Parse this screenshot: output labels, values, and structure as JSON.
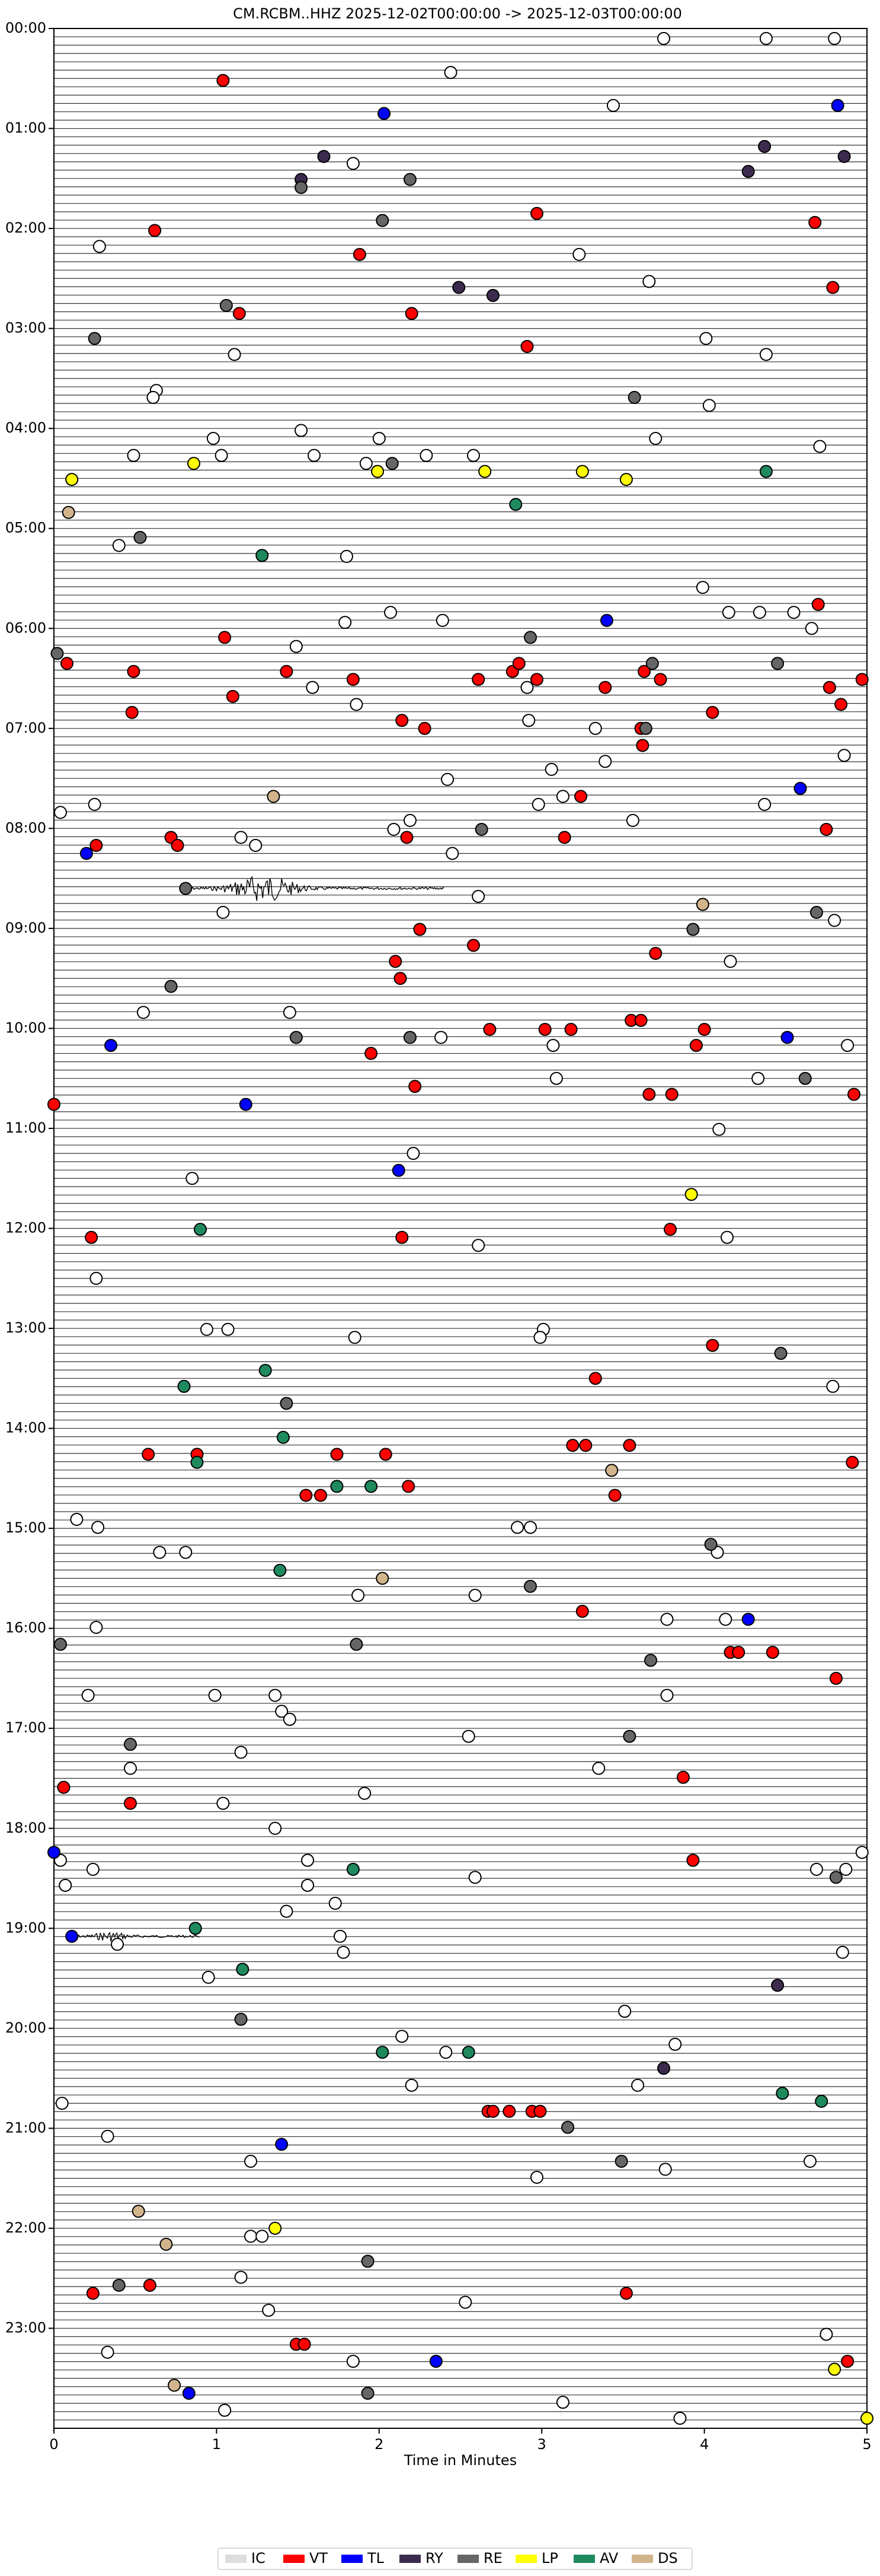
{
  "chart_data": {
    "type": "scatter",
    "title": "CM.RCBM..HHZ  2025-12-02T00:00:00 -> 2025-12-03T00:00:00",
    "x_label": "Time in Minutes",
    "xlim": [
      0,
      5
    ],
    "xticks": [
      0,
      1,
      2,
      3,
      4,
      5
    ],
    "ylim": [
      0,
      24
    ],
    "y_inverted": true,
    "yticks": [
      {
        "value": 0,
        "label": "00:00"
      },
      {
        "value": 1,
        "label": "01:00"
      },
      {
        "value": 2,
        "label": "02:00"
      },
      {
        "value": 3,
        "label": "03:00"
      },
      {
        "value": 4,
        "label": "04:00"
      },
      {
        "value": 5,
        "label": "05:00"
      },
      {
        "value": 6,
        "label": "06:00"
      },
      {
        "value": 7,
        "label": "07:00"
      },
      {
        "value": 8,
        "label": "08:00"
      },
      {
        "value": 9,
        "label": "09:00"
      },
      {
        "value": 10,
        "label": "10:00"
      },
      {
        "value": 11,
        "label": "11:00"
      },
      {
        "value": 12,
        "label": "12:00"
      },
      {
        "value": 13,
        "label": "13:00"
      },
      {
        "value": 14,
        "label": "14:00"
      },
      {
        "value": 15,
        "label": "15:00"
      },
      {
        "value": 16,
        "label": "16:00"
      },
      {
        "value": 17,
        "label": "17:00"
      },
      {
        "value": 18,
        "label": "18:00"
      },
      {
        "value": 19,
        "label": "19:00"
      },
      {
        "value": 20,
        "label": "20:00"
      },
      {
        "value": 21,
        "label": "21:00"
      },
      {
        "value": 22,
        "label": "22:00"
      },
      {
        "value": 23,
        "label": "23:00"
      }
    ],
    "legend": "bottom",
    "series": [
      {
        "name": "IC",
        "color": "#ffffff",
        "x": [
          3.75,
          4.38,
          4.8,
          2.44,
          3.44,
          1.84,
          0.28,
          3.23,
          3.66,
          4.01,
          4.38,
          1.11,
          0.63,
          0.61,
          4.03,
          0.98,
          3.7,
          1.52,
          4.71,
          0.49,
          1.03,
          1.6,
          2.0,
          1.92,
          2.29,
          2.58,
          0.4,
          1.8,
          3.99,
          4.15,
          4.34,
          4.55,
          2.07,
          4.66,
          2.39,
          1.79,
          1.49,
          1.59,
          1.86,
          2.91,
          2.92,
          3.33,
          4.86,
          2.42,
          3.06,
          3.39,
          3.13,
          2.98,
          4.37,
          0.25,
          0.04,
          3.56,
          2.19,
          2.09,
          1.15,
          1.24,
          2.45,
          2.61,
          1.04,
          4.16,
          0.55,
          1.45,
          4.8,
          3.07,
          2.38,
          4.88,
          3.09,
          4.33,
          4.09,
          2.21,
          0.85,
          4.14,
          2.61,
          0.26,
          0.94,
          1.07,
          1.85,
          3.01,
          2.99,
          4.79,
          0.14,
          0.27,
          2.85,
          2.93,
          0.65,
          0.81,
          4.08,
          1.87,
          2.59,
          0.26,
          3.77,
          4.13,
          0.21,
          0.99,
          1.36,
          1.4,
          1.45,
          3.77,
          2.55,
          1.15,
          0.47,
          1.04,
          3.35,
          1.36,
          1.91,
          4.97,
          0.04,
          0.24,
          1.56,
          4.69,
          4.87,
          1.56,
          0.07,
          2.59,
          1.43,
          1.73,
          1.76,
          1.78,
          0.39,
          4.85,
          0.95,
          3.51,
          2.14,
          2.41,
          3.82,
          2.2,
          3.59,
          0.05,
          0.33,
          1.21,
          4.65,
          2.97,
          3.76,
          1.21,
          1.28,
          1.15,
          2.53,
          1.32,
          4.75,
          1.84,
          0.33,
          3.13,
          1.05,
          3.85
        ],
        "y": [
          0.1,
          0.1,
          0.1,
          0.44,
          0.77,
          1.35,
          2.18,
          2.26,
          2.53,
          3.1,
          3.26,
          3.26,
          3.62,
          3.69,
          3.77,
          4.1,
          4.1,
          4.02,
          4.18,
          4.27,
          4.27,
          4.27,
          4.1,
          4.35,
          4.27,
          4.27,
          5.17,
          5.28,
          5.59,
          5.84,
          5.84,
          5.84,
          5.84,
          6.0,
          5.92,
          5.94,
          6.18,
          6.59,
          6.76,
          6.59,
          6.92,
          7.0,
          7.27,
          7.51,
          7.41,
          7.33,
          7.68,
          7.76,
          7.76,
          7.76,
          7.84,
          7.92,
          7.92,
          8.01,
          8.09,
          8.17,
          8.25,
          8.68,
          8.84,
          9.33,
          9.84,
          9.84,
          8.92,
          10.17,
          10.09,
          10.17,
          10.5,
          10.5,
          11.01,
          11.25,
          11.5,
          12.09,
          12.17,
          12.5,
          13.01,
          13.01,
          13.09,
          13.01,
          13.09,
          13.58,
          14.91,
          14.99,
          14.99,
          14.99,
          15.24,
          15.24,
          15.24,
          15.67,
          15.67,
          15.99,
          15.91,
          15.91,
          16.67,
          16.67,
          16.67,
          16.83,
          16.91,
          16.67,
          17.08,
          17.24,
          17.4,
          17.75,
          17.4,
          18.0,
          17.65,
          18.24,
          18.32,
          18.41,
          18.32,
          18.41,
          18.41,
          18.57,
          18.57,
          18.49,
          18.83,
          18.75,
          19.08,
          19.24,
          19.16,
          19.24,
          19.49,
          19.83,
          20.08,
          20.24,
          20.16,
          20.57,
          20.57,
          20.75,
          21.08,
          21.33,
          21.33,
          21.49,
          21.41,
          22.08,
          22.08,
          22.49,
          22.74,
          22.82,
          23.06,
          23.33,
          23.24,
          23.74,
          23.82,
          23.9
        ]
      },
      {
        "name": "VT",
        "color": "#ff0000",
        "x": [
          1.04,
          0.62,
          2.97,
          4.68,
          1.88,
          4.79,
          2.2,
          1.14,
          2.91,
          1.05,
          0.08,
          0.49,
          1.43,
          1.84,
          2.61,
          2.82,
          2.86,
          2.97,
          3.39,
          3.63,
          3.73,
          4.7,
          4.97,
          4.77,
          4.84,
          0.48,
          1.1,
          2.14,
          2.28,
          4.05,
          3.61,
          3.62,
          3.24,
          4.75,
          0.72,
          0.76,
          0.26,
          2.17,
          3.14,
          2.25,
          2.58,
          3.7,
          2.1,
          2.13,
          2.68,
          3.02,
          3.18,
          3.55,
          3.61,
          4.0,
          3.95,
          1.95,
          2.22,
          3.66,
          3.8,
          4.92,
          0.0,
          0.23,
          2.14,
          3.79,
          4.05,
          3.33,
          0.58,
          0.88,
          1.74,
          2.04,
          3.19,
          3.27,
          3.54,
          4.91,
          1.55,
          1.64,
          2.18,
          3.45,
          3.25,
          4.16,
          4.21,
          4.42,
          4.81,
          0.06,
          0.47,
          3.87,
          3.93,
          4.88,
          0.24,
          0.59,
          3.52,
          1.49,
          1.54,
          2.67,
          2.7,
          2.8,
          2.94,
          2.99
        ],
        "y": [
          0.52,
          2.02,
          1.85,
          1.94,
          2.26,
          2.59,
          2.85,
          2.85,
          3.18,
          6.09,
          6.35,
          6.43,
          6.43,
          6.51,
          6.51,
          6.43,
          6.35,
          6.51,
          6.59,
          6.43,
          6.51,
          5.76,
          6.51,
          6.59,
          6.76,
          6.84,
          6.68,
          6.92,
          7.0,
          6.84,
          7.0,
          7.17,
          7.68,
          8.01,
          8.09,
          8.17,
          8.17,
          8.09,
          8.09,
          9.01,
          9.17,
          9.25,
          9.33,
          9.5,
          10.01,
          10.01,
          10.01,
          9.92,
          9.92,
          10.01,
          10.17,
          10.25,
          10.58,
          10.66,
          10.66,
          10.66,
          10.76,
          12.09,
          12.09,
          12.01,
          13.17,
          13.5,
          14.26,
          14.26,
          14.26,
          14.26,
          14.17,
          14.17,
          14.17,
          14.34,
          14.67,
          14.67,
          14.58,
          14.67,
          15.83,
          16.24,
          16.24,
          16.24,
          16.5,
          17.59,
          17.75,
          17.49,
          18.32,
          23.33,
          22.65,
          22.57,
          22.65,
          23.16,
          23.16,
          20.83,
          20.83,
          20.83,
          20.83,
          20.83
        ]
      },
      {
        "name": "TL",
        "color": "#0000ff",
        "x": [
          2.03,
          4.82,
          3.4,
          4.59,
          0.2,
          4.51,
          0.35,
          1.18,
          2.12,
          4.27,
          0.0,
          0.11,
          1.4,
          2.35,
          0.83
        ],
        "y": [
          0.85,
          0.77,
          5.92,
          7.6,
          8.25,
          10.09,
          10.17,
          10.76,
          11.42,
          15.91,
          18.24,
          19.08,
          21.16,
          23.33,
          23.65
        ]
      },
      {
        "name": "RY",
        "color": "#3d2b4f",
        "x": [
          1.66,
          4.37,
          4.86,
          1.52,
          4.27,
          2.49,
          2.7,
          4.45,
          3.75
        ],
        "y": [
          1.28,
          1.18,
          1.28,
          1.51,
          1.43,
          2.59,
          2.67,
          19.57,
          20.4
        ]
      },
      {
        "name": "RE",
        "color": "#666666",
        "x": [
          1.52,
          2.19,
          2.02,
          1.06,
          0.25,
          3.57,
          2.08,
          0.53,
          2.93,
          0.02,
          3.68,
          4.45,
          3.64,
          2.63,
          0.81,
          4.69,
          3.93,
          0.72,
          1.49,
          2.19,
          4.62,
          4.47,
          1.43,
          4.04,
          2.93,
          0.04,
          1.86,
          3.67,
          0.47,
          3.54,
          4.81,
          1.15,
          3.16,
          3.49,
          1.93,
          0.4,
          1.93
        ],
        "y": [
          1.59,
          1.51,
          1.92,
          2.77,
          3.1,
          3.69,
          4.35,
          5.09,
          6.09,
          6.25,
          6.35,
          6.35,
          7.0,
          8.01,
          8.6,
          8.84,
          9.01,
          9.58,
          10.09,
          10.09,
          10.5,
          13.25,
          13.75,
          15.16,
          15.58,
          16.16,
          16.16,
          16.32,
          17.16,
          17.08,
          18.49,
          19.91,
          20.99,
          21.33,
          22.33,
          22.57,
          23.65
        ]
      },
      {
        "name": "LP",
        "color": "#ffff00",
        "x": [
          0.11,
          0.86,
          1.99,
          2.65,
          3.25,
          3.52,
          3.92,
          1.36,
          4.8,
          5.0
        ],
        "y": [
          4.51,
          4.35,
          4.43,
          4.43,
          4.43,
          4.51,
          11.66,
          22.0,
          23.41,
          23.9
        ]
      },
      {
        "name": "AV",
        "color": "#1e8a5e",
        "x": [
          4.38,
          2.84,
          1.28,
          0.9,
          1.3,
          0.8,
          1.41,
          0.88,
          1.74,
          1.95,
          1.39,
          1.84,
          0.87,
          1.16,
          2.02,
          2.55,
          4.48,
          4.72
        ],
        "y": [
          4.43,
          4.76,
          5.27,
          12.01,
          13.42,
          13.58,
          14.09,
          14.34,
          14.58,
          14.58,
          15.42,
          18.41,
          19.0,
          19.41,
          20.24,
          20.24,
          20.65,
          20.73
        ]
      },
      {
        "name": "DS",
        "color": "#d2b48c",
        "x": [
          0.09,
          1.35,
          3.99,
          2.02,
          3.43,
          0.52,
          0.69,
          0.74
        ],
        "y": [
          4.84,
          7.68,
          8.76,
          15.5,
          14.42,
          21.83,
          22.16,
          23.57
        ]
      }
    ]
  }
}
